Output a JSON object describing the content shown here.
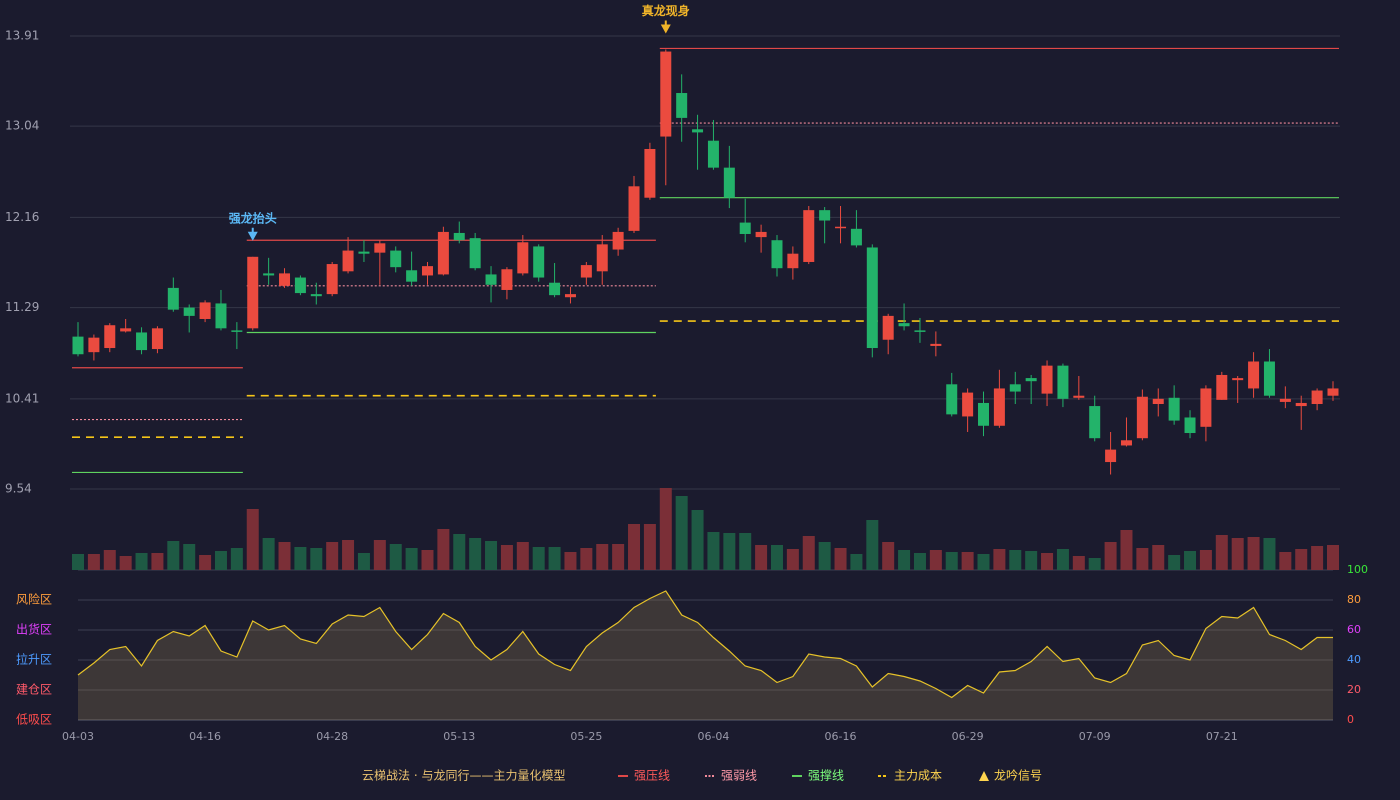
{
  "chart_data": {
    "type": "candlestick",
    "categories": [
      "04-03",
      null,
      null,
      null,
      null,
      null,
      null,
      null,
      "04-16",
      null,
      null,
      null,
      null,
      null,
      null,
      null,
      "04-28",
      null,
      null,
      null,
      null,
      null,
      null,
      null,
      "05-13",
      null,
      null,
      null,
      null,
      null,
      null,
      null,
      "05-25",
      null,
      null,
      null,
      null,
      null,
      null,
      null,
      "06-04",
      null,
      null,
      null,
      null,
      null,
      null,
      null,
      "06-16",
      null,
      null,
      null,
      null,
      null,
      null,
      null,
      "06-29",
      null,
      null,
      null,
      null,
      null,
      null,
      null,
      "07-09",
      null,
      null,
      null,
      null,
      null,
      null,
      null,
      "07-21",
      null,
      null,
      null,
      null,
      null,
      null,
      null
    ],
    "open": [
      11.01,
      10.86,
      10.9,
      11.06,
      11.05,
      10.89,
      11.48,
      11.29,
      11.18,
      11.33,
      11.07,
      11.09,
      11.62,
      11.5,
      11.58,
      11.42,
      11.42,
      11.64,
      11.83,
      11.82,
      11.84,
      11.65,
      11.6,
      11.61,
      12.01,
      11.96,
      11.61,
      11.46,
      11.62,
      11.88,
      11.53,
      11.39,
      11.58,
      11.64,
      11.85,
      12.03,
      12.35,
      12.94,
      13.36,
      13.01,
      12.9,
      12.64,
      12.11,
      11.97,
      11.94,
      11.67,
      11.73,
      12.23,
      12.06,
      12.05,
      11.87,
      10.98,
      11.14,
      11.07,
      10.92,
      10.55,
      10.24,
      10.37,
      10.15,
      10.55,
      10.61,
      10.46,
      10.73,
      10.42,
      10.34,
      9.8,
      9.96,
      10.03,
      10.36,
      10.42,
      10.23,
      10.14,
      10.4,
      10.59,
      10.51,
      10.77,
      10.38,
      10.34,
      10.36,
      10.44
    ],
    "close": [
      10.84,
      11.0,
      11.12,
      11.09,
      10.88,
      11.09,
      11.27,
      11.21,
      11.34,
      11.09,
      11.06,
      11.78,
      11.6,
      11.62,
      11.43,
      11.4,
      11.71,
      11.84,
      11.81,
      11.91,
      11.68,
      11.54,
      11.69,
      12.02,
      11.94,
      11.67,
      11.51,
      11.66,
      11.92,
      11.58,
      11.41,
      11.42,
      11.7,
      11.9,
      12.02,
      12.46,
      12.82,
      13.76,
      13.12,
      12.98,
      12.64,
      12.35,
      12.0,
      12.02,
      11.67,
      11.81,
      12.23,
      12.13,
      12.07,
      11.89,
      10.9,
      11.21,
      11.11,
      11.06,
      10.94,
      10.26,
      10.47,
      10.15,
      10.51,
      10.48,
      10.58,
      10.73,
      10.41,
      10.44,
      10.03,
      9.92,
      10.01,
      10.43,
      10.41,
      10.2,
      10.08,
      10.51,
      10.64,
      10.61,
      10.77,
      10.44,
      10.41,
      10.37,
      10.49,
      10.51
    ],
    "high": [
      11.15,
      11.03,
      11.14,
      11.18,
      11.1,
      11.11,
      11.58,
      11.32,
      11.36,
      11.46,
      11.15,
      11.78,
      11.77,
      11.67,
      11.6,
      11.53,
      11.73,
      11.97,
      11.94,
      11.94,
      11.88,
      11.83,
      11.73,
      12.07,
      12.12,
      12.01,
      11.69,
      11.68,
      11.99,
      11.9,
      11.72,
      11.49,
      11.73,
      11.99,
      12.06,
      12.56,
      12.88,
      13.78,
      13.54,
      13.15,
      13.1,
      12.85,
      12.34,
      12.09,
      11.99,
      11.88,
      12.27,
      12.26,
      12.27,
      12.23,
      11.9,
      11.23,
      11.33,
      11.19,
      11.06,
      10.66,
      10.51,
      10.48,
      10.69,
      10.67,
      10.64,
      10.78,
      10.75,
      10.63,
      10.44,
      10.09,
      10.23,
      10.5,
      10.51,
      10.54,
      10.3,
      10.54,
      10.67,
      10.63,
      10.86,
      10.89,
      10.53,
      10.44,
      10.51,
      10.58
    ],
    "low": [
      10.82,
      10.78,
      10.86,
      11.05,
      10.84,
      10.85,
      11.25,
      11.05,
      11.15,
      11.07,
      10.89,
      11.07,
      11.51,
      11.48,
      11.41,
      11.32,
      11.4,
      11.62,
      11.73,
      11.51,
      11.63,
      11.5,
      11.51,
      11.6,
      11.91,
      11.65,
      11.34,
      11.37,
      11.6,
      11.54,
      11.39,
      11.33,
      11.51,
      11.51,
      11.79,
      12.01,
      12.33,
      12.47,
      12.89,
      12.62,
      12.62,
      12.25,
      11.92,
      11.82,
      11.59,
      11.56,
      11.71,
      11.91,
      11.91,
      11.87,
      10.81,
      10.84,
      11.07,
      10.95,
      10.82,
      10.24,
      10.09,
      10.05,
      10.13,
      10.36,
      10.36,
      10.34,
      10.33,
      10.4,
      10.0,
      9.68,
      9.95,
      10.01,
      10.24,
      10.16,
      10.03,
      10.0,
      10.4,
      10.37,
      10.42,
      10.42,
      10.32,
      10.11,
      10.3,
      10.39
    ],
    "up_color": "#eb4b3f",
    "down_color": "#23b36a",
    "ylim": [
      9.54,
      13.91
    ],
    "yticks": [
      13.91,
      13.04,
      12.16,
      11.29,
      10.41,
      9.54
    ],
    "grid": true,
    "volume": [
      16,
      16,
      20,
      14,
      17,
      17,
      29,
      26,
      15,
      19,
      22,
      61,
      32,
      28,
      23,
      22,
      28,
      30,
      17,
      30,
      26,
      22,
      20,
      41,
      36,
      32,
      29,
      25,
      28,
      23,
      23,
      18,
      22,
      26,
      26,
      46,
      46,
      82,
      74,
      60,
      38,
      37,
      37,
      25,
      25,
      21,
      34,
      28,
      22,
      16,
      50,
      28,
      20,
      17,
      20,
      18,
      18,
      16,
      21,
      20,
      19,
      17,
      21,
      14,
      12,
      28,
      40,
      22,
      25,
      15,
      19,
      20,
      35,
      32,
      33,
      32,
      18,
      21,
      24,
      25
    ],
    "volume_up_color": "#7b2f37",
    "volume_down_color": "#1e5a44",
    "levels": [
      {
        "name": "强压线",
        "color": "#e04848",
        "text_color": "#ff5a5a",
        "style": "solid",
        "segments": [
          {
            "start": 0,
            "end": 10,
            "value": 10.71
          },
          {
            "start": 11,
            "end": 36,
            "value": 11.94
          },
          {
            "start": 37,
            "end": 79,
            "value": 13.79
          }
        ]
      },
      {
        "name": "强弱线",
        "color": "#f08a9a",
        "text_color": "#ff9aa8",
        "style": "dotted",
        "segments": [
          {
            "start": 0,
            "end": 10,
            "value": 10.21
          },
          {
            "start": 11,
            "end": 36,
            "value": 11.5
          },
          {
            "start": 37,
            "end": 79,
            "value": 13.07
          }
        ]
      },
      {
        "name": "强撑线",
        "color": "#5fd35f",
        "text_color": "#7dff7d",
        "style": "solid",
        "segments": [
          {
            "start": 0,
            "end": 10,
            "value": 9.7
          },
          {
            "start": 11,
            "end": 36,
            "value": 11.05
          },
          {
            "start": 37,
            "end": 79,
            "value": 12.35
          }
        ]
      },
      {
        "name": "主力成本",
        "color": "#f5c518",
        "text_color": "#ffd54f",
        "style": "dashed",
        "segments": [
          {
            "start": 0,
            "end": 10,
            "value": 10.04
          },
          {
            "start": 11,
            "end": 36,
            "value": 10.44
          },
          {
            "start": 37,
            "end": 79,
            "value": 11.16
          }
        ]
      }
    ],
    "signals": [
      {
        "index": 11,
        "label": "强龙抬头",
        "color": "#5bb8f5"
      },
      {
        "index": 37,
        "label": "真龙现身",
        "color": "#f0b429"
      }
    ],
    "signal_legend": {
      "label": "龙吟信号",
      "color": "#ffd54f"
    },
    "indicator": {
      "values": [
        30,
        38,
        47,
        49,
        36,
        53,
        59,
        56,
        63,
        46,
        42,
        66,
        60,
        63,
        54,
        51,
        64,
        70,
        69,
        75,
        59,
        47,
        57,
        71,
        65,
        49,
        40,
        47,
        59,
        44,
        37,
        33,
        49,
        58,
        65,
        75,
        81,
        86,
        70,
        65,
        55,
        46,
        36,
        33,
        25,
        29,
        44,
        42,
        41,
        36,
        22,
        31,
        29,
        26,
        21,
        15,
        23,
        18,
        32,
        33,
        39,
        49,
        39,
        41,
        28,
        25,
        31,
        50,
        53,
        43,
        40,
        61,
        69,
        68,
        75,
        57,
        53,
        47,
        55,
        55
      ],
      "color": "#e6c229",
      "ylim": [
        0,
        100
      ],
      "yticks": [
        0,
        20,
        40,
        60,
        80,
        100
      ],
      "ytick_colors": [
        "#ff4d4d",
        "#ff5a6a",
        "#4d9bff",
        "#e040fb",
        "#ff9d3c",
        "#39e639"
      ],
      "zones": [
        {
          "label": "风险区",
          "value": 80,
          "color": "#ff9d3c"
        },
        {
          "label": "出货区",
          "value": 60,
          "color": "#e040fb"
        },
        {
          "label": "拉升区",
          "value": 40,
          "color": "#4d9bff"
        },
        {
          "label": "建仓区",
          "value": 20,
          "color": "#ff5a6a"
        },
        {
          "label": "低吸区",
          "value": 0,
          "color": "#ff4d4d"
        }
      ]
    },
    "legend_title": "云梯战法 · 与龙同行——主力量化模型"
  }
}
